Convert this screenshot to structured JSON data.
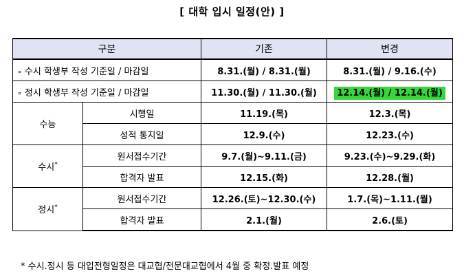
{
  "title": "[ 대학 입시 일정(안) ]",
  "header": {
    "category": "구분",
    "before": "기존",
    "after": "변경"
  },
  "rows": {
    "susi_record": {
      "bullet": "∘",
      "label": "수시 학생부 작성 기준일 / 마감일",
      "before": "8.31.(월) / 8.31.(월)",
      "after": "8.31.(월) / 9.16.(수)"
    },
    "jeongsi_record": {
      "bullet": "∘",
      "label": "정시 학생부 작성 기준일 / 마감일",
      "before": "11.30.(월) / 11.30.(월)",
      "after": "12.14.(월) / 12.14.(월)",
      "highlight_color": "#39d639"
    },
    "suneung": {
      "group": "수능",
      "exam_label": "시행일",
      "exam_before": "11.19.(목)",
      "exam_after": "12.3.(목)",
      "score_label": "성적 통지일",
      "score_before": "12.9.(수)",
      "score_after": "12.23.(수)"
    },
    "susi": {
      "group": "수시",
      "mark": "*",
      "apply_label": "원서접수기간",
      "apply_before": "9.7.(월)~9.11.(금)",
      "apply_after": "9.23.(수)~9.29.(화)",
      "result_label": "합격자 발표",
      "result_before": "12.15.(화)",
      "result_after": "12.28.(월)"
    },
    "jeongsi": {
      "group": "정시",
      "mark": "*",
      "apply_label": "원서접수기간",
      "apply_before": "12.26.(토)~12.30.(수)",
      "apply_after": "1.7.(목)~1.11.(월)",
      "result_label": "합격자 발표",
      "result_before": "2.1.(월)",
      "result_after": "2.6.(토)"
    }
  },
  "footnote": "* 수시.정시 등 대입전형일정은 대교협/전문대교협에서 4월 중 확정.발표 예정"
}
